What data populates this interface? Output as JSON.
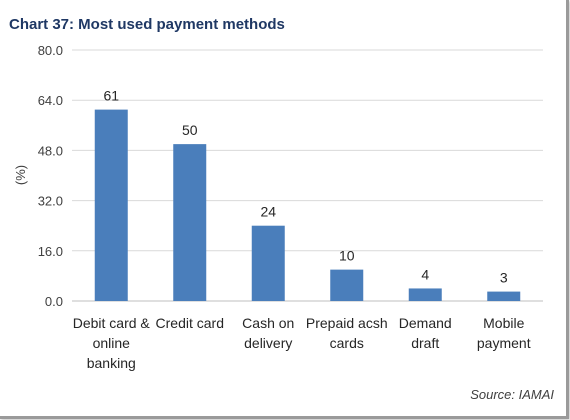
{
  "chart_data": {
    "type": "bar",
    "title": "Chart 37: Most used payment methods",
    "ylabel": "(%)",
    "xlabel": "",
    "ylim": [
      0,
      80
    ],
    "yticks": [
      "0.0",
      "16.0",
      "32.0",
      "48.0",
      "64.0",
      "80.0"
    ],
    "categories": [
      [
        "Debit card &",
        "online",
        "banking"
      ],
      [
        "Credit card"
      ],
      [
        "Cash on",
        "delivery"
      ],
      [
        "Prepaid acsh",
        "cards"
      ],
      [
        "Demand",
        "draft"
      ],
      [
        "Mobile",
        "payment"
      ]
    ],
    "values": [
      61,
      50,
      24,
      10,
      4,
      3
    ],
    "data_labels": [
      "61",
      "50",
      "24",
      "10",
      "4",
      "3"
    ],
    "grid": true,
    "bar_color": "#4a7ebb",
    "grid_color": "#d9d9d9"
  },
  "source": "Source: IAMAI"
}
